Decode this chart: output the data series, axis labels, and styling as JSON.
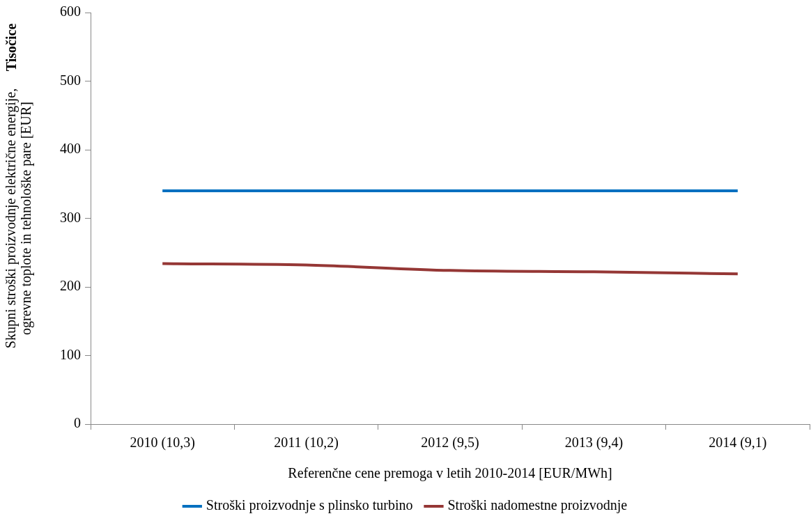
{
  "chart_data": {
    "type": "line",
    "xlabel": "Referenčne cene premoga v letih 2010-2014 [EUR/MWh]",
    "ylabel": "Skupni stroški proizvodnje električne energije,\nogrevne toplote in tehnološke pare [EUR]",
    "annotations": [
      "Tisočice"
    ],
    "categories": [
      "2010 (10,3)",
      "2011 (10,2)",
      "2012 (9,5)",
      "2013 (9,4)",
      "2014 (9,1)"
    ],
    "series": [
      {
        "name": "Stroški proizvodnje s plinsko turbino",
        "color": "#0070c0",
        "values": [
          340,
          340,
          340,
          340,
          340
        ]
      },
      {
        "name": "Stroški nadomestne proizvodnje",
        "color": "#953735",
        "values": [
          234,
          232,
          224,
          222,
          219
        ]
      }
    ],
    "ylim": [
      0,
      600
    ],
    "yticks": [
      0,
      100,
      200,
      300,
      400,
      500,
      600
    ],
    "grid": false,
    "legend": "bottom",
    "marker": "none",
    "line_style": "solid"
  }
}
